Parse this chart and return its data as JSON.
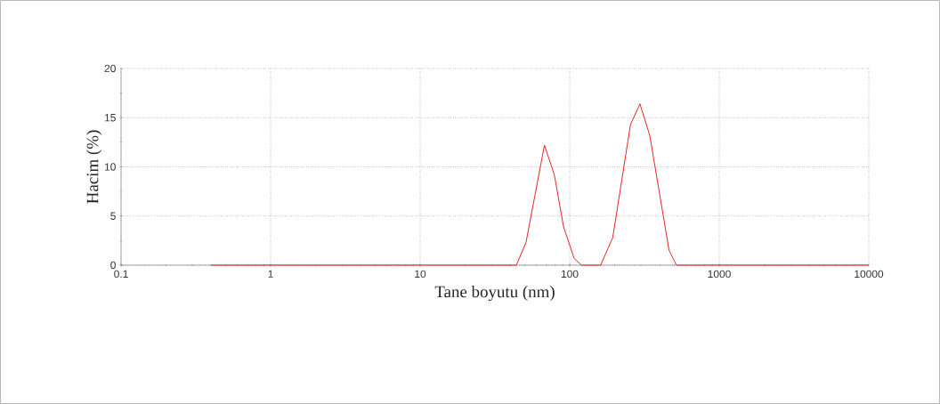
{
  "chart_data": {
    "type": "line",
    "xlabel": "Tane boyutu (nm)",
    "ylabel": "Hacim (%)",
    "log": "x",
    "xlim": [
      0.1,
      10000
    ],
    "xticks": [
      0.1,
      1,
      10,
      100,
      1000,
      10000
    ],
    "ylim": [
      0,
      20
    ],
    "yticks": [
      0,
      5,
      10,
      15,
      20
    ],
    "grid": true,
    "marker": "none",
    "line_style": "solid",
    "series": [
      {
        "color": "#ee2222",
        "x": [
          0.4,
          44,
          51,
          67.8,
          78.9,
          91,
          107,
          120,
          161,
          194,
          255,
          295,
          343,
          462,
          518,
          10000
        ],
        "values": [
          0,
          0,
          2.3,
          12.2,
          9.2,
          3.9,
          0.7,
          0,
          0,
          2.8,
          14.3,
          16.4,
          13.2,
          1.5,
          0,
          0
        ]
      }
    ]
  }
}
